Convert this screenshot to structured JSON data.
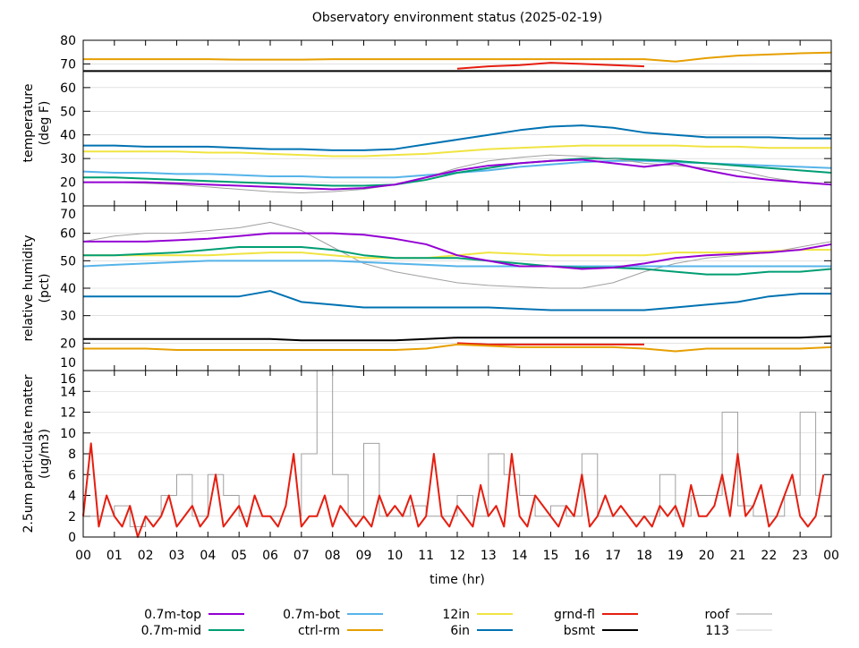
{
  "chart_data": {
    "type": "line",
    "title": "Observatory environment status (2025-02-19)",
    "xlabel": "time (hr)",
    "xlim": [
      0,
      24
    ],
    "xtick_labels": [
      "00",
      "01",
      "02",
      "03",
      "04",
      "05",
      "06",
      "07",
      "08",
      "09",
      "10",
      "11",
      "12",
      "13",
      "14",
      "15",
      "16",
      "17",
      "18",
      "19",
      "20",
      "21",
      "22",
      "23",
      "00"
    ],
    "grid": true,
    "legend_placement": "bottom",
    "legend": [
      {
        "name": "0.7m-top",
        "color": "#9400d3"
      },
      {
        "name": "0.7m-mid",
        "color": "#009e73"
      },
      {
        "name": "0.7m-bot",
        "color": "#56b4e9"
      },
      {
        "name": "ctrl-rm",
        "color": "#e69f00"
      },
      {
        "name": "12in",
        "color": "#f0e442"
      },
      {
        "name": "6in",
        "color": "#0072b2"
      },
      {
        "name": "grnd-fl",
        "color": "#e51e10"
      },
      {
        "name": "bsmt",
        "color": "#000000"
      },
      {
        "name": "roof",
        "color": "#a0a0a0"
      },
      {
        "name": "113",
        "color": "#d3d3d3"
      }
    ],
    "panels": [
      {
        "ylabel": [
          "temperature",
          "(deg F)"
        ],
        "ylim": [
          10,
          80
        ],
        "yticks": [
          10,
          20,
          30,
          40,
          50,
          60,
          70,
          80
        ],
        "series": [
          {
            "name": "ctrl-rm",
            "x0": 0,
            "dx": 1,
            "values": [
              72,
              72,
              72,
              72,
              72,
              71.8,
              71.8,
              71.8,
              72,
              72,
              72,
              72,
              72,
              72,
              72,
              72,
              72,
              72,
              72,
              71,
              72.5,
              73.5,
              74,
              74.5,
              74.8
            ]
          },
          {
            "name": "bsmt",
            "x0": 0,
            "dx": 1,
            "values": [
              67,
              67,
              67,
              67,
              67,
              67,
              67,
              67,
              67,
              67,
              67,
              67,
              67,
              67,
              67,
              67,
              67,
              67,
              67,
              67,
              67,
              67,
              67,
              67,
              67
            ]
          },
          {
            "name": "grnd-fl",
            "x0": 12,
            "dx": 1,
            "values": [
              68,
              69,
              69.5,
              70.5,
              70,
              69.5,
              69
            ]
          },
          {
            "name": "6in",
            "x0": 0,
            "dx": 1,
            "values": [
              35.5,
              35.5,
              35,
              35,
              35,
              34.5,
              34,
              34,
              33.5,
              33.5,
              34,
              36,
              38,
              40,
              42,
              43.5,
              44,
              43,
              41,
              40,
              39,
              39,
              39,
              38.5,
              38.5
            ]
          },
          {
            "name": "12in",
            "x0": 0,
            "dx": 1,
            "values": [
              33,
              33,
              33,
              33,
              32.5,
              32.5,
              32,
              31.5,
              31,
              31,
              31.5,
              32,
              33,
              34,
              34.5,
              35,
              35.5,
              35.5,
              35.5,
              35.5,
              35,
              35,
              34.5,
              34.5,
              34.5
            ]
          },
          {
            "name": "0.7m-bot",
            "x0": 0,
            "dx": 1,
            "values": [
              24.5,
              24,
              24,
              23.5,
              23.5,
              23,
              22.5,
              22.5,
              22,
              22,
              22,
              23,
              24,
              25,
              26.5,
              27.5,
              28.5,
              29,
              29,
              28.5,
              28,
              27.5,
              27,
              26.5,
              26
            ]
          },
          {
            "name": "0.7m-mid",
            "x0": 0,
            "dx": 1,
            "values": [
              22,
              22,
              21.5,
              21,
              20.5,
              20,
              19.5,
              19,
              18.5,
              18.5,
              19,
              21,
              24,
              26,
              28,
              29,
              30,
              30,
              29.5,
              29,
              28,
              27,
              26,
              25,
              24
            ]
          },
          {
            "name": "roof",
            "x0": 0,
            "dx": 1,
            "values": [
              20,
              20,
              19.5,
              19,
              18,
              17,
              16,
              15.5,
              16,
              17,
              19,
              22,
              26,
              29,
              30.5,
              31.5,
              31,
              30,
              28,
              27,
              26,
              25,
              22,
              20,
              19
            ]
          },
          {
            "name": "0.7m-top",
            "x0": 0,
            "dx": 1,
            "values": [
              20,
              20,
              20,
              19.5,
              19,
              18.5,
              18,
              17.5,
              17,
              17.5,
              19,
              22,
              25,
              27,
              28,
              29,
              29.5,
              28,
              26.5,
              28,
              25,
              22.5,
              21,
              20,
              19
            ]
          }
        ]
      },
      {
        "ylabel": [
          "relative humidity",
          "(pct)"
        ],
        "ylim": [
          10,
          70
        ],
        "yticks": [
          10,
          20,
          30,
          40,
          50,
          60,
          70
        ],
        "series": [
          {
            "name": "roof",
            "x0": 0,
            "dx": 1,
            "values": [
              57,
              59,
              60,
              60,
              61,
              62,
              64,
              61,
              55,
              49,
              46,
              44,
              42,
              41,
              40.5,
              40,
              40,
              42,
              46,
              49,
              51,
              52,
              53,
              55,
              57
            ]
          },
          {
            "name": "0.7m-bot",
            "x0": 0,
            "dx": 1,
            "values": [
              48,
              48.5,
              49,
              49.5,
              50,
              50,
              50,
              50,
              50,
              49.5,
              49,
              48.5,
              48,
              48,
              48,
              48,
              48,
              48,
              48,
              48,
              48,
              48,
              48,
              48,
              48
            ]
          },
          {
            "name": "12in",
            "x0": 0,
            "dx": 1,
            "values": [
              52,
              52,
              52,
              52,
              52,
              52.5,
              53,
              53,
              52,
              51,
              51,
              51,
              52,
              53,
              52.5,
              52,
              52,
              52,
              52,
              53,
              53,
              53,
              53.5,
              54,
              54
            ]
          },
          {
            "name": "0.7m-mid",
            "x0": 0,
            "dx": 1,
            "values": [
              52,
              52,
              52.5,
              53,
              54,
              55,
              55,
              55,
              54,
              52,
              51,
              51,
              51,
              50,
              49,
              48,
              47.5,
              47.5,
              47,
              46,
              45,
              45,
              46,
              46,
              47
            ]
          },
          {
            "name": "0.7m-top",
            "x0": 0,
            "dx": 1,
            "values": [
              57,
              57,
              57,
              57.5,
              58,
              59,
              60,
              60,
              60,
              59.5,
              58,
              56,
              52,
              50,
              48,
              48,
              47,
              47.5,
              49,
              51,
              52,
              52.5,
              53,
              54,
              56
            ]
          },
          {
            "name": "6in",
            "x0": 0,
            "dx": 1,
            "values": [
              37,
              37,
              37,
              37,
              37,
              37,
              39,
              35,
              34,
              33,
              33,
              33,
              33,
              33,
              32.5,
              32,
              32,
              32,
              32,
              33,
              34,
              35,
              37,
              38,
              38
            ]
          },
          {
            "name": "grnd-fl",
            "x0": 12,
            "dx": 1,
            "values": [
              20,
              19.5,
              19.5,
              19.5,
              19.5,
              19.5,
              19.5
            ]
          },
          {
            "name": "bsmt",
            "x0": 0,
            "dx": 1,
            "values": [
              21.5,
              21.5,
              21.5,
              21.5,
              21.5,
              21.5,
              21.5,
              21,
              21,
              21,
              21,
              21.5,
              22,
              22,
              22,
              22,
              22,
              22,
              22,
              22,
              22,
              22,
              22,
              22,
              22.5
            ]
          },
          {
            "name": "ctrl-rm",
            "x0": 0,
            "dx": 1,
            "values": [
              18,
              18,
              18,
              17.5,
              17.5,
              17.5,
              17.5,
              17.5,
              17.5,
              17.5,
              17.5,
              18,
              19.5,
              19,
              18.5,
              18.5,
              18.5,
              18.5,
              18,
              17,
              18,
              18,
              18,
              18,
              18.5
            ]
          }
        ]
      },
      {
        "ylabel": [
          "2.5um particulate matter",
          "(ug/m3)"
        ],
        "ylim": [
          0,
          16
        ],
        "yticks": [
          0,
          2,
          4,
          6,
          8,
          10,
          12,
          14,
          16
        ],
        "series": [
          {
            "name": "roof",
            "step": true,
            "x0": 0,
            "dx": 0.5,
            "values": [
              2,
              2,
              3,
              1,
              2,
              4,
              6,
              2,
              6,
              4,
              2,
              2,
              2,
              2,
              8,
              16,
              6,
              2,
              9,
              2,
              2,
              3,
              2,
              2,
              4,
              2,
              8,
              6,
              4,
              2,
              3,
              2,
              8,
              2,
              2,
              2,
              2,
              6,
              2,
              4,
              4,
              12,
              3,
              2,
              2,
              4,
              12,
              4
            ]
          },
          {
            "name": "grnd-fl",
            "x0": 0,
            "dx": 0.25,
            "values": [
              2,
              9,
              1,
              4,
              2,
              1,
              3,
              0,
              2,
              1,
              2,
              4,
              1,
              2,
              3,
              1,
              2,
              6,
              1,
              2,
              3,
              1,
              4,
              2,
              2,
              1,
              3,
              8,
              1,
              2,
              2,
              4,
              1,
              3,
              2,
              1,
              2,
              1,
              4,
              2,
              3,
              2,
              4,
              1,
              2,
              8,
              2,
              1,
              3,
              2,
              1,
              5,
              2,
              3,
              1,
              8,
              2,
              1,
              4,
              3,
              2,
              1,
              3,
              2,
              6,
              1,
              2,
              4,
              2,
              3,
              2,
              1,
              2,
              1,
              3,
              2,
              3,
              1,
              5,
              2,
              2,
              3,
              6,
              2,
              8,
              2,
              3,
              5,
              1,
              2,
              4,
              6,
              2,
              1,
              2,
              6
            ]
          }
        ]
      }
    ]
  }
}
